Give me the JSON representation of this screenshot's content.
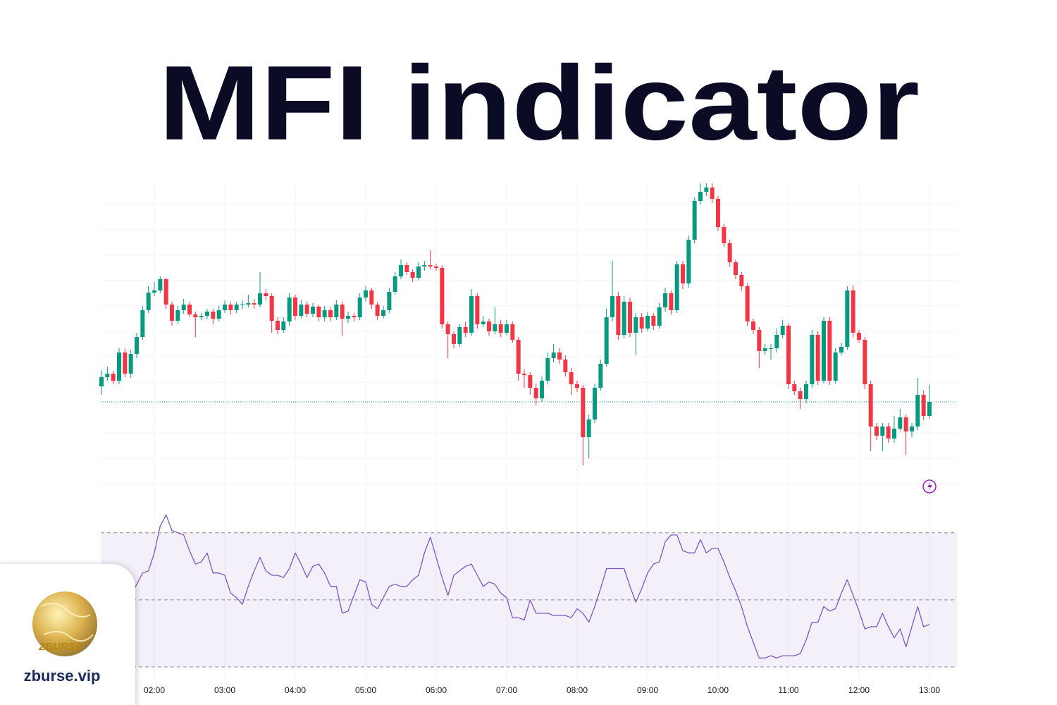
{
  "chart_data": [
    {
      "type": "candlestick",
      "title": "MFI indicator",
      "x": [
        75,
        80,
        85,
        90,
        95,
        100,
        105,
        110,
        115,
        120,
        125,
        130,
        135,
        140,
        145,
        150,
        155,
        160,
        165,
        170,
        175,
        180,
        185,
        190,
        195,
        200,
        205,
        210,
        215,
        220,
        225,
        230,
        235,
        240,
        245,
        250,
        255,
        260,
        265,
        270,
        275,
        280,
        285,
        290,
        295,
        300,
        305,
        310,
        315,
        320,
        325,
        330,
        335,
        340,
        345,
        350,
        355,
        360,
        365,
        370,
        375,
        380,
        385,
        390,
        395,
        400,
        405,
        410,
        415,
        420,
        425,
        430,
        435,
        440,
        445,
        450,
        455,
        460,
        465,
        470,
        475,
        480,
        485,
        490,
        495,
        500,
        505,
        510,
        515,
        520,
        525,
        530,
        535,
        540,
        545,
        550,
        555,
        560,
        565,
        570,
        575,
        580,
        585,
        590,
        595,
        600,
        605,
        610,
        615,
        620,
        625,
        630,
        635,
        640,
        645,
        650,
        655,
        660,
        665,
        670,
        675,
        680,
        685,
        690,
        695,
        700,
        705,
        710,
        715,
        720,
        725,
        730,
        735,
        740,
        745,
        750,
        755,
        760,
        765,
        770,
        775,
        780
      ],
      "open": [
        152,
        165,
        170,
        160,
        200,
        170,
        198,
        222,
        260,
        285,
        288,
        304,
        268,
        245,
        260,
        268,
        254,
        250,
        252,
        258,
        248,
        260,
        268,
        260,
        268,
        268,
        270,
        268,
        284,
        280,
        245,
        232,
        244,
        278,
        252,
        268,
        255,
        265,
        250,
        260,
        250,
        268,
        248,
        252,
        250,
        278,
        288,
        268,
        252,
        260,
        286,
        308,
        324,
        314,
        306,
        322,
        324,
        322,
        320,
        240,
        226,
        212,
        236,
        228,
        280,
        240,
        244,
        230,
        240,
        228,
        240,
        218,
        170,
        168,
        150,
        135,
        160,
        192,
        200,
        190,
        172,
        155,
        150,
        80,
        105,
        150,
        184,
        250,
        280,
        225,
        272,
        228,
        250,
        234,
        252,
        238,
        264,
        284,
        260,
        325,
        298,
        360,
        415,
        428,
        434,
        418,
        378,
        355,
        328,
        310,
        294,
        244,
        232,
        202,
        206,
        206,
        225,
        238,
        155,
        145,
        134,
        155,
        225,
        160,
        245,
        160,
        200,
        208,
        288,
        228,
        218,
        155,
        95,
        82,
        95,
        78,
        92,
        108,
        88,
        95,
        140,
        110
      ],
      "high": [
        175,
        180,
        174,
        206,
        205,
        204,
        228,
        266,
        294,
        300,
        308,
        306,
        272,
        266,
        276,
        272,
        258,
        256,
        262,
        262,
        266,
        274,
        272,
        272,
        274,
        282,
        276,
        314,
        290,
        284,
        250,
        250,
        284,
        282,
        274,
        272,
        270,
        268,
        266,
        264,
        274,
        272,
        258,
        256,
        284,
        294,
        292,
        272,
        266,
        292,
        314,
        332,
        328,
        318,
        328,
        330,
        345,
        326,
        324,
        244,
        230,
        240,
        244,
        290,
        284,
        252,
        248,
        264,
        246,
        246,
        244,
        222,
        176,
        172,
        156,
        166,
        200,
        212,
        206,
        196,
        178,
        160,
        154,
        112,
        156,
        190,
        262,
        330,
        286,
        280,
        278,
        256,
        256,
        258,
        256,
        270,
        292,
        288,
        330,
        330,
        366,
        420,
        440,
        440,
        440,
        422,
        382,
        360,
        332,
        314,
        298,
        248,
        236,
        212,
        212,
        234,
        246,
        242,
        160,
        150,
        160,
        232,
        230,
        250,
        250,
        206,
        214,
        294,
        296,
        232,
        222,
        160,
        100,
        100,
        100,
        110,
        120,
        112,
        100,
        164,
        146,
        154
      ],
      "low": [
        140,
        160,
        155,
        155,
        165,
        164,
        192,
        218,
        256,
        280,
        284,
        262,
        238,
        240,
        255,
        250,
        222,
        246,
        248,
        240,
        244,
        256,
        254,
        256,
        262,
        264,
        262,
        264,
        274,
        228,
        226,
        228,
        238,
        246,
        248,
        250,
        250,
        244,
        244,
        244,
        246,
        224,
        242,
        244,
        246,
        272,
        262,
        246,
        248,
        256,
        282,
        304,
        310,
        300,
        302,
        316,
        318,
        316,
        234,
        192,
        206,
        208,
        222,
        224,
        234,
        236,
        224,
        226,
        222,
        224,
        214,
        160,
        150,
        140,
        125,
        130,
        155,
        186,
        184,
        166,
        140,
        144,
        40,
        50,
        100,
        146,
        180,
        244,
        218,
        220,
        222,
        196,
        228,
        230,
        232,
        234,
        258,
        254,
        256,
        290,
        292,
        355,
        410,
        422,
        412,
        372,
        350,
        322,
        304,
        288,
        238,
        226,
        178,
        196,
        190,
        200,
        220,
        148,
        140,
        120,
        128,
        150,
        154,
        156,
        154,
        156,
        196,
        204,
        222,
        214,
        148,
        60,
        76,
        60,
        72,
        72,
        88,
        55,
        80,
        90,
        104,
        106
      ],
      "close": [
        165,
        170,
        160,
        200,
        170,
        198,
        222,
        260,
        285,
        288,
        304,
        268,
        245,
        260,
        268,
        254,
        250,
        252,
        258,
        248,
        260,
        268,
        260,
        268,
        268,
        270,
        268,
        284,
        280,
        245,
        232,
        244,
        278,
        252,
        268,
        255,
        265,
        250,
        260,
        250,
        268,
        248,
        252,
        250,
        278,
        288,
        268,
        252,
        260,
        286,
        308,
        324,
        314,
        306,
        322,
        324,
        322,
        320,
        240,
        226,
        212,
        236,
        228,
        280,
        240,
        244,
        230,
        240,
        228,
        240,
        218,
        170,
        168,
        150,
        135,
        160,
        192,
        200,
        190,
        172,
        155,
        150,
        80,
        105,
        150,
        184,
        250,
        280,
        225,
        272,
        228,
        250,
        234,
        252,
        238,
        264,
        284,
        260,
        325,
        298,
        360,
        415,
        428,
        434,
        418,
        378,
        355,
        328,
        310,
        294,
        244,
        232,
        202,
        206,
        206,
        225,
        238,
        155,
        145,
        134,
        155,
        225,
        160,
        245,
        160,
        200,
        208,
        288,
        228,
        218,
        155,
        95,
        82,
        95,
        78,
        92,
        108,
        88,
        95,
        140,
        110,
        130
      ],
      "up_color": "#089981",
      "down_color": "#f23645",
      "xlim": [
        74.4,
        803.4
      ],
      "ylim": [
        0,
        440
      ],
      "last_price_line": true
    },
    {
      "type": "line",
      "x": [
        100,
        110,
        115,
        120,
        125,
        130,
        135,
        140,
        145,
        150,
        155,
        160,
        165,
        170,
        175,
        180,
        185,
        190,
        195,
        200,
        205,
        210,
        215,
        220,
        225,
        230,
        235,
        240,
        245,
        250,
        255,
        260,
        265,
        270,
        275,
        280,
        285,
        290,
        295,
        300,
        305,
        310,
        315,
        320,
        325,
        330,
        335,
        340,
        345,
        350,
        355,
        360,
        365,
        370,
        375,
        380,
        385,
        390,
        395,
        400,
        405,
        410,
        415,
        420,
        425,
        430,
        435,
        440,
        445,
        450,
        455,
        460,
        465,
        470,
        475,
        480,
        485,
        490,
        495,
        500,
        505,
        510,
        515,
        520,
        525,
        530,
        535,
        540,
        545,
        550,
        555,
        560,
        565,
        570,
        575,
        580,
        585,
        590,
        595,
        600,
        605,
        610,
        615,
        620,
        625,
        630,
        635,
        640,
        645,
        650,
        655,
        660,
        665,
        670,
        675,
        680,
        685,
        690,
        695,
        700,
        705,
        710,
        715,
        720,
        725,
        730,
        735,
        740,
        745,
        750,
        755,
        760,
        765,
        770,
        775,
        780
      ],
      "series": [
        {
          "color": "#7e57c2",
          "values": [
            52,
            62,
            63,
            71,
            83,
            88,
            81,
            80,
            79,
            72,
            66,
            67,
            71,
            62,
            62,
            61,
            53,
            51,
            48,
            56,
            63,
            69,
            63,
            61,
            61,
            60,
            64,
            71,
            66,
            60,
            65,
            66,
            62,
            56,
            56,
            44,
            45,
            52,
            59,
            58,
            48,
            46,
            51,
            56,
            57,
            56,
            56,
            59,
            61,
            71,
            78,
            69,
            60,
            52,
            61,
            63,
            65,
            66,
            61,
            56,
            58,
            57,
            53,
            51,
            42,
            42,
            41,
            50,
            44,
            44,
            44,
            43,
            43,
            43,
            42,
            46,
            44,
            40,
            47,
            55,
            64,
            64,
            64,
            64,
            56,
            49,
            55,
            62,
            66,
            67,
            76,
            79,
            79,
            72,
            71,
            71,
            77,
            71,
            73,
            73,
            67,
            60,
            54,
            47,
            38,
            31,
            24,
            24,
            25,
            24,
            25,
            25,
            25,
            26,
            32,
            40,
            40,
            47,
            45,
            46,
            53,
            59,
            52,
            45,
            37,
            38,
            38,
            44,
            38,
            33,
            37,
            29,
            38,
            47,
            38,
            39
          ]
        }
      ],
      "levels": [
        80,
        50,
        20
      ],
      "band_color": "#7e57c2",
      "xlim": [
        74.4,
        803.4
      ],
      "ylim": [
        14,
        96
      ],
      "xticks": [
        {
          "value": 120,
          "label": "02:00"
        },
        {
          "value": 180,
          "label": "03:00"
        },
        {
          "value": 240,
          "label": "04:00"
        },
        {
          "value": 300,
          "label": "05:00"
        },
        {
          "value": 360,
          "label": "06:00"
        },
        {
          "value": 420,
          "label": "07:00"
        },
        {
          "value": 480,
          "label": "08:00"
        },
        {
          "value": 540,
          "label": "09:00"
        },
        {
          "value": 600,
          "label": "10:00"
        },
        {
          "value": 660,
          "label": "11:00"
        },
        {
          "value": 720,
          "label": "12:00"
        },
        {
          "value": 780,
          "label": "13:00"
        }
      ],
      "grid": true
    }
  ],
  "logo": {
    "mark": "ZBURSE",
    "site": "zburse.vip"
  }
}
